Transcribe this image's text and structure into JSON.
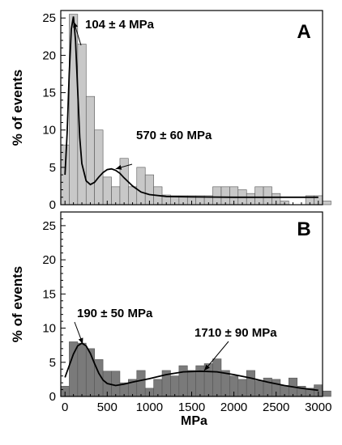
{
  "chart_data": {
    "type": "bar",
    "xlabel": "MPa",
    "xlim": [
      -50,
      3050
    ],
    "xticks": [
      0,
      500,
      1000,
      1500,
      2000,
      2500,
      3000
    ],
    "bin_width": 100,
    "colors": {
      "panel_a_bars": "#c8c8c8",
      "panel_b_bars": "#7a7a7a",
      "bar_edge": "#555555",
      "fit_line": "#000000"
    },
    "panels": [
      {
        "label": "A",
        "ylabel": "% of events",
        "ylim": [
          0,
          26
        ],
        "yticks": [
          0,
          5,
          10,
          15,
          20,
          25
        ],
        "bin_start": -50,
        "values": [
          8.0,
          25.5,
          21.5,
          14.5,
          10.0,
          3.7,
          2.4,
          6.2,
          2.4,
          5.0,
          4.0,
          2.4,
          1.3,
          1.2,
          1.2,
          1.2,
          1.2,
          1.2,
          2.4,
          2.4,
          2.4,
          2.0,
          1.5,
          2.4,
          2.4,
          1.5,
          0.5,
          0,
          0,
          1.2,
          1.2,
          0.5
        ],
        "fit": {
          "x": [
            0,
            25,
            50,
            75,
            100,
            125,
            150,
            175,
            200,
            250,
            300,
            350,
            400,
            450,
            500,
            550,
            600,
            650,
            700,
            800,
            900,
            1000,
            1200,
            1500,
            2000,
            2500,
            3000
          ],
          "y": [
            4.0,
            9.5,
            17.5,
            23.5,
            25.2,
            22.0,
            15.5,
            9.0,
            5.5,
            3.2,
            2.7,
            3.0,
            3.7,
            4.3,
            4.7,
            4.8,
            4.6,
            4.2,
            3.6,
            2.5,
            1.7,
            1.35,
            1.1,
            1.05,
            1.0,
            1.0,
            1.0
          ]
        },
        "annotations": [
          {
            "text": "104 ± 4 MPa",
            "x": 104,
            "y": 24.5
          },
          {
            "text": "570 ± 60 MPa",
            "x": 600,
            "y": 4.8
          }
        ]
      },
      {
        "label": "B",
        "ylabel": "% of events",
        "ylim": [
          0,
          27
        ],
        "yticks": [
          0,
          5,
          10,
          15,
          20,
          25
        ],
        "bin_start": -50,
        "values": [
          1.5,
          8.0,
          7.8,
          7.0,
          5.4,
          3.7,
          3.7,
          2.0,
          2.5,
          3.8,
          1.2,
          2.5,
          3.8,
          3.0,
          4.5,
          3.8,
          4.5,
          4.8,
          5.5,
          3.8,
          3.0,
          2.5,
          3.8,
          2.3,
          2.7,
          2.5,
          1.6,
          2.7,
          1.5,
          1.2,
          1.7,
          0.8
        ],
        "fit": {
          "x": [
            0,
            50,
            100,
            150,
            200,
            250,
            300,
            350,
            400,
            450,
            500,
            600,
            700,
            800,
            1000,
            1200,
            1400,
            1600,
            1800,
            2000,
            2200,
            2400,
            2600,
            2800,
            3000
          ],
          "y": [
            2.8,
            4.5,
            6.2,
            7.4,
            7.8,
            7.4,
            6.3,
            4.8,
            3.4,
            2.4,
            1.9,
            1.6,
            1.8,
            2.1,
            2.6,
            3.2,
            3.6,
            3.7,
            3.6,
            3.2,
            2.7,
            2.1,
            1.6,
            1.2,
            0.9
          ]
        },
        "annotations": [
          {
            "text": "190 ± 50 MPa",
            "x": 210,
            "y": 7.7
          },
          {
            "text": "1710 ± 90 MPa",
            "x": 1650,
            "y": 3.8
          }
        ]
      }
    ]
  }
}
